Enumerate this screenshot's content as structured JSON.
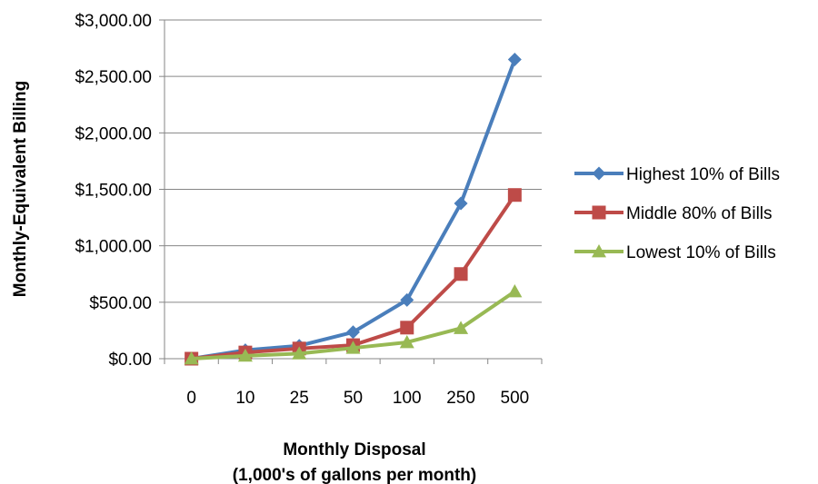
{
  "chart_data": {
    "type": "line",
    "title": "",
    "xlabel": [
      "Monthly Disposal",
      "(1,000's of gallons per month)"
    ],
    "ylabel": "Monthly-Equivalent Billing",
    "categories": [
      "0",
      "10",
      "25",
      "50",
      "100",
      "250",
      "500"
    ],
    "y_tick_labels": [
      "$0.00",
      "$500.00",
      "$1,000.00",
      "$1,500.00",
      "$2,000.00",
      "$2,500.00",
      "$3,000.00"
    ],
    "y_ticks": [
      0,
      500,
      1000,
      1500,
      2000,
      2500,
      3000
    ],
    "ylim": [
      0,
      3000
    ],
    "grid": "horizontal",
    "legend_position": "right",
    "series": [
      {
        "name": "Highest 10% of Bills",
        "color": "#4a7ebb",
        "marker": "diamond",
        "values": [
          0,
          75,
          115,
          235,
          520,
          1375,
          2650
        ]
      },
      {
        "name": "Middle 80% of Bills",
        "color": "#be4b48",
        "marker": "square",
        "values": [
          0,
          55,
          90,
          120,
          275,
          750,
          1450
        ]
      },
      {
        "name": "Lowest 10% of Bills",
        "color": "#98b954",
        "marker": "triangle",
        "values": [
          0,
          25,
          45,
          95,
          145,
          270,
          595
        ]
      }
    ]
  }
}
